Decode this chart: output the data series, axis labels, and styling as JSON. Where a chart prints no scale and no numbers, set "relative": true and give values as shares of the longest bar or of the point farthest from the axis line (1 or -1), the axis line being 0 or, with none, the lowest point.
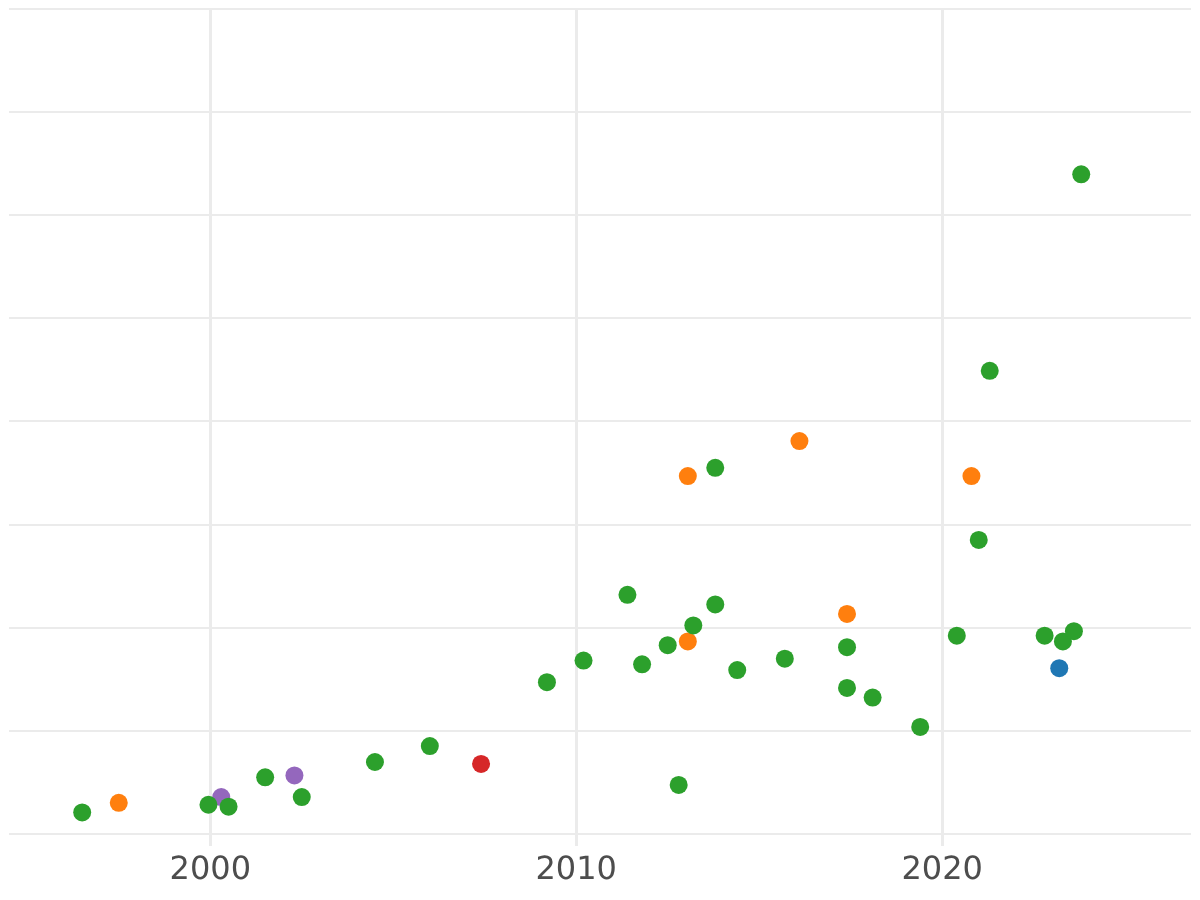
{
  "chart_data": {
    "type": "scatter",
    "relative": true,
    "xlim": [
      1994.5,
      2026.8
    ],
    "xticks": [
      2000,
      2010,
      2020
    ],
    "tick_labels": "x",
    "grid": true,
    "legend": false,
    "marker": "circle",
    "series": [
      {
        "color": "#2ca02c",
        "x": [
          1996.5,
          1999.95,
          2000.5,
          2001.5,
          2002.5,
          2004.5,
          2006.0,
          2009.2,
          2010.2,
          2011.4,
          2011.8,
          2012.5,
          2012.8,
          2013.2,
          2013.8,
          2013.8,
          2014.4,
          2015.7,
          2017.4,
          2017.4,
          2018.1,
          2019.4,
          2020.4,
          2021.0,
          2021.3,
          2022.8,
          2023.3,
          2023.6,
          2023.8
        ],
        "values": [
          0,
          0.012,
          0.009,
          0.055,
          0.024,
          0.079,
          0.104,
          0.204,
          0.238,
          0.341,
          0.232,
          0.262,
          0.043,
          0.293,
          0.54,
          0.326,
          0.223,
          0.241,
          0.259,
          0.195,
          0.18,
          0.134,
          0.277,
          0.427,
          0.692,
          0.277,
          0.268,
          0.284,
          1
        ]
      },
      {
        "color": "#ff7f0e",
        "x": [
          1997.5,
          2013.05,
          2013.05,
          2016.1,
          2017.4,
          2020.8
        ],
        "values": [
          0.015,
          0.527,
          0.268,
          0.582,
          0.311,
          0.527
        ]
      },
      {
        "color": "#9467bd",
        "x": [
          2000.3,
          2002.3
        ],
        "values": [
          0.024,
          0.058
        ]
      },
      {
        "color": "#d62728",
        "x": [
          2007.4
        ],
        "values": [
          0.076
        ]
      },
      {
        "color": "#1f77b4",
        "x": [
          2023.2
        ],
        "values": [
          0.226
        ]
      }
    ]
  }
}
